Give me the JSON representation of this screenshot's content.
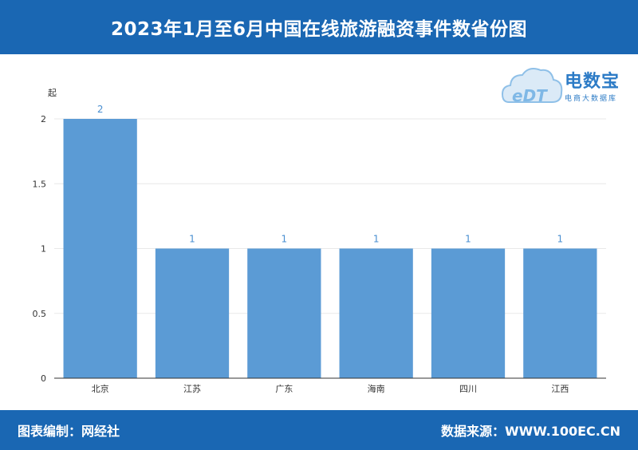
{
  "header": {
    "title": "2023年1月至6月中国在线旅游融资事件数省份图"
  },
  "footer": {
    "left": "图表编制：网经社",
    "right": "数据来源：WWW.100EC.CN"
  },
  "logo": {
    "mark": "eDT",
    "name": "电数宝",
    "subtitle": "电商大数据库"
  },
  "colors": {
    "header_bg": "#1a67b3",
    "bar": "#5b9bd5",
    "data_label": "#4a8fd1"
  },
  "chart_data": {
    "type": "bar",
    "categories": [
      "北京",
      "江苏",
      "广东",
      "海南",
      "四川",
      "江西"
    ],
    "values": [
      2,
      1,
      1,
      1,
      1,
      1
    ],
    "data_labels": [
      "2",
      "1",
      "1",
      "1",
      "1",
      "1"
    ],
    "yunit": "起",
    "ylim": [
      0,
      2
    ],
    "yticks": [
      {
        "value": 0,
        "label": "0"
      },
      {
        "value": 0.5,
        "label": "0.5"
      },
      {
        "value": 1,
        "label": "1"
      },
      {
        "value": 1.5,
        "label": "1.5"
      },
      {
        "value": 2,
        "label": "2"
      }
    ],
    "grid": true,
    "legend": "none"
  }
}
